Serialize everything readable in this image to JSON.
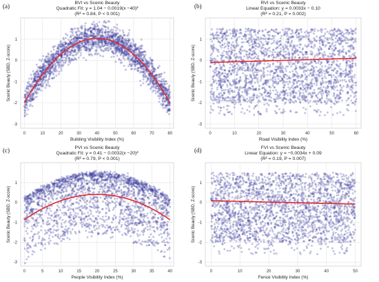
{
  "chart_data": [
    {
      "type": "scatter",
      "panel_label": "(a)",
      "title": "BVI vs Scenic Beauty",
      "fit_text": "Quadratic Fit: y = 1.04 − 0.0019(x −40)²",
      "stats_text": "(R² = 0.84, P < 0.001)",
      "xlabel": "Building Visibility Index (%)",
      "ylabel": "Scenic Beauty (SBD, Z-score)",
      "xlim": [
        -2,
        82
      ],
      "ylim": [
        -3.2,
        2.0
      ],
      "xticks": [
        "0",
        "10",
        "20",
        "30",
        "40",
        "50",
        "60",
        "70",
        "80"
      ],
      "yticks": [
        "-3",
        "-2",
        "-1",
        "0",
        "1"
      ],
      "grid": true,
      "point_color": "#3f3fa0",
      "fit_color": "#e0282e",
      "scatter_shape": "quadratic",
      "fit_line": {
        "a": 1.04,
        "b": -0.0019,
        "x0": 40
      },
      "point_spread": 0.35,
      "n_points": 2200
    },
    {
      "type": "scatter",
      "panel_label": "(b)",
      "title": "RVI vs Scenic Beauty",
      "fit_text": "Linear Equation: y = 0.0033x − 0.10",
      "stats_text": "(R² = 0.21, P = 0.002)",
      "xlabel": "Road Visibility Index (%)",
      "ylabel": "Scenic Beauty (SBD, Z-score)",
      "xlim": [
        -2,
        62
      ],
      "ylim": [
        -3.2,
        2.0
      ],
      "xticks": [
        "0",
        "10",
        "20",
        "30",
        "40",
        "50",
        "60"
      ],
      "yticks": [
        "-3",
        "-2",
        "-1",
        "0",
        "1"
      ],
      "grid": true,
      "point_color": "#3f3fa0",
      "fit_color": "#e0282e",
      "scatter_shape": "uniform",
      "fit_line": {
        "slope": 0.0033,
        "intercept": -0.1
      },
      "y_range": [
        -2.0,
        1.5
      ],
      "n_points": 2200
    },
    {
      "type": "scatter",
      "panel_label": "(c)",
      "title": "PVI vs Scenic Beauty",
      "fit_text": "Quadratic Fit: y = 0.41 − 0.0032(x −20)²",
      "stats_text": "(R² = 0.79, P < 0.001)",
      "xlabel": "People Visibility Index (%)",
      "ylabel": "Scenic Beauty (SBD, Z-score)",
      "xlim": [
        -1,
        41
      ],
      "ylim": [
        -3.2,
        2.0
      ],
      "xticks": [
        "0",
        "5",
        "10",
        "15",
        "20",
        "25",
        "30",
        "35",
        "40"
      ],
      "yticks": [
        "-3",
        "-2",
        "-1",
        "0",
        "1"
      ],
      "grid": true,
      "point_color": "#3f3fa0",
      "fit_color": "#e0282e",
      "scatter_shape": "quadratic-band",
      "fit_line": {
        "a": 0.41,
        "b": -0.0032,
        "x0": 20
      },
      "band_top": {
        "a": 1.45,
        "b": -0.0032,
        "x0": 20
      },
      "n_points": 2200
    },
    {
      "type": "scatter",
      "panel_label": "(d)",
      "title": "FVI vs Scenic Beauty",
      "fit_text": "Linear Equation: y = −0.0034x + 0.09",
      "stats_text": "(R² = 0.19, P = 0.007)",
      "xlabel": "Fence Visibility Index (%)",
      "ylabel": "Scenic Beauty (SBD, Z-score)",
      "xlim": [
        -2,
        52
      ],
      "ylim": [
        -3.2,
        2.0
      ],
      "xticks": [
        "0",
        "10",
        "20",
        "30",
        "40",
        "50"
      ],
      "yticks": [
        "-3",
        "-2",
        "-1",
        "0",
        "1"
      ],
      "grid": true,
      "point_color": "#3f3fa0",
      "fit_color": "#e0282e",
      "scatter_shape": "uniform",
      "fit_line": {
        "slope": -0.0034,
        "intercept": 0.09
      },
      "y_range": [
        -2.0,
        1.5
      ],
      "n_points": 2200
    }
  ]
}
